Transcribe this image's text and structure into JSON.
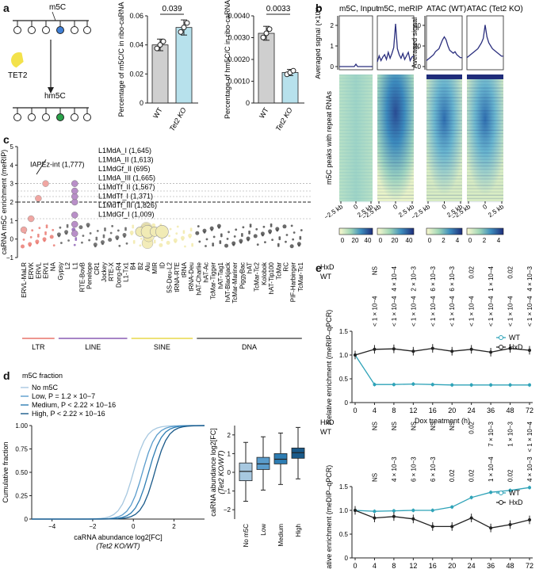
{
  "panels": {
    "a": "a",
    "b": "b",
    "c": "c",
    "d": "d",
    "e": "e"
  },
  "colors": {
    "wt_teal": "#2fa3b8",
    "hxd_black": "#222222",
    "tet2_light_blue": "#b7e1ec",
    "wt_grey": "#cfcfcf",
    "density_navy": "#2b2f7e"
  },
  "panel_a": {
    "schematic": {
      "m5c_label": "m5C",
      "hm5c_label": "hm5C",
      "enzyme_label": "TET2"
    },
    "bar1": {
      "ylabel": "Percentage of m5C/C in ribo-caRNA",
      "yticks": [
        "0",
        "0.02",
        "0.04",
        "0.06"
      ],
      "pvalue": "0.039",
      "categories": [
        "WT",
        "Tet2 KO"
      ]
    },
    "bar2": {
      "ylabel": "Percentage of hm5C/C in ribo-caRNA",
      "yticks": [
        "0",
        "0.0010",
        "0.0020",
        "0.0030",
        "0.0040"
      ],
      "pvalue": "0.0033",
      "categories": [
        "WT",
        "Tet2 KO"
      ]
    }
  },
  "panel_b": {
    "col_titles": [
      "m5C, Input",
      "m5C, meRIP",
      "ATAC (WT)",
      "ATAC (Tet2 KO)"
    ],
    "ylabel_left": "Averaged signal (×10³)",
    "ylabel_right": "Averaged signal",
    "yticks_left": [
      "0",
      "1",
      "2"
    ],
    "yticks_right": [
      "0",
      "20",
      "40"
    ],
    "heatmap_ylabel": "m5C peaks with repeat RNAs",
    "xticks": [
      "−2.5 kb",
      "0",
      "2.5 kb"
    ],
    "colorbar1_ticks": [
      "0",
      "20",
      "40"
    ],
    "colorbar2_ticks": [
      "0",
      "20",
      "40"
    ],
    "colorbar3_ticks": [
      "0",
      "2",
      "4"
    ],
    "colorbar4_ticks": [
      "0",
      "2",
      "4"
    ]
  },
  "panel_c": {
    "ylabel": "caRNA m5C enrichment (meRIP)",
    "yticks": [
      "−1",
      "0",
      "1",
      "2",
      "3",
      "4",
      "5"
    ],
    "annotation_iap": "IAPEz-int (1,777)",
    "l1_labels": [
      "L1MdA_I (1,645)",
      "L1MdA_II (1,613)",
      "L1MdGf_II (695)",
      "L1MdA_III (1,665)",
      "L1MdTf_II (1,567)",
      "L1MdTf_I (1,371)",
      "L1MdTf_III (1,826)",
      "L1MdGf_I (1,009)"
    ],
    "families": [
      "ERVL-MaLR",
      "ERVK",
      "ERVL",
      "ERV1",
      "NA",
      "Gypsy",
      "L2",
      "L1",
      "RTE-BovB",
      "Penelope",
      "CR1",
      "Jockey",
      "RTE-X",
      "Dong-R4",
      "L1-Tx1",
      "B4",
      "B2",
      "Alu",
      "MIR",
      "ID",
      "5S-Deu-L2",
      "tRNA-RTE",
      "tRNA",
      "tRNA-Deu",
      "hAT-Charlie",
      "hAT-Ac",
      "TcMar-Tigger",
      "hAT-Tag1",
      "hAT-Blackjack",
      "TcMar-Mariner",
      "PiggyBac",
      "hAT",
      "TcMar-Tc2",
      "Kolobok",
      "hAT-Tip100",
      "TcMar",
      "RC",
      "PIF-Harbinger",
      "TcMar-Tc1"
    ],
    "classes": [
      "LTR",
      "LINE",
      "SINE",
      "DNA"
    ],
    "class_colors": [
      "#e8746b",
      "#8a5bb3",
      "#e8d84a",
      "#555555"
    ]
  },
  "panel_d": {
    "legend_title": "m5C fraction",
    "legend": [
      "No m5C",
      "Low, P = 1.2 × 10−7",
      "Medium, P < 2.22 × 10−16",
      "High, P < 2.22 × 10−16"
    ],
    "cdf_ylabel": "Cumulative fraction",
    "cdf_xlabel1": "caRNA abundance log2[FC]",
    "cdf_xlabel2": "(Tet2 KO/WT)",
    "cdf_xticks": [
      "−4",
      "−2",
      "0",
      "2"
    ],
    "cdf_yticks": [
      "0",
      "0.25",
      "0.50",
      "0.75",
      "1.00"
    ],
    "box_ylabel1": "caRNA abundance log2[FC]",
    "box_ylabel2": "(Tet2 KO/WT)",
    "box_yticks": [
      "−2",
      "−1",
      "0",
      "1",
      "2"
    ],
    "box_categories": [
      "No m5C",
      "Low",
      "Medium",
      "High"
    ]
  },
  "chart_data": [
    {
      "type": "bar",
      "title": "m5C/C",
      "categories": [
        "WT",
        "Tet2 KO"
      ],
      "values": [
        0.04,
        0.052
      ],
      "ylim": [
        0,
        0.06
      ],
      "ylabel": "Percentage of m5C/C in ribo-caRNA"
    },
    {
      "type": "bar",
      "title": "hm5C/C",
      "categories": [
        "WT",
        "Tet2 KO"
      ],
      "values": [
        0.0032,
        0.0014
      ],
      "ylim": [
        0,
        0.004
      ],
      "ylabel": "Percentage of hm5C/C in ribo-caRNA"
    },
    {
      "type": "box",
      "categories": [
        "No m5C",
        "Low",
        "Medium",
        "High"
      ],
      "medians": [
        0.05,
        0.45,
        0.7,
        1.05
      ],
      "q1": [
        -0.45,
        0.15,
        0.45,
        0.75
      ],
      "q3": [
        0.5,
        0.8,
        1.0,
        1.3
      ],
      "ylim": [
        -2.5,
        2.5
      ]
    },
    {
      "type": "line",
      "title": "meRIP-qPCR",
      "xlabel": "Dox treatment (h)",
      "ylabel": "Relative enrichment (meRIP–qPCR)",
      "x": [
        "0",
        "4",
        "8",
        "12",
        "16",
        "20",
        "24",
        "36",
        "48",
        "72"
      ],
      "series": [
        {
          "name": "WT",
          "values": [
            1.0,
            0.38,
            0.38,
            0.39,
            0.38,
            0.37,
            0.37,
            0.37,
            0.37,
            0.37
          ]
        },
        {
          "name": "HxD",
          "values": [
            1.0,
            1.12,
            1.13,
            1.08,
            1.14,
            1.08,
            1.12,
            1.06,
            1.14,
            1.1
          ]
        }
      ],
      "ylim": [
        0,
        1.5
      ],
      "yticks": [
        "0",
        "0.5",
        "1.0",
        "1.5"
      ],
      "hxd_pvalues": [
        "NS",
        "4 × 10−4",
        "2 × 10−3",
        "6 × 10−3",
        "6 × 10−3",
        "0.02",
        "1 × 10−4",
        "0.02",
        "4 × 10−3"
      ],
      "wt_pvalues": [
        "< 1 × 10−4",
        "< 1 × 10−4",
        "< 1 × 10−4",
        "< 1 × 10−4",
        "< 1 × 10−4",
        "< 1 × 10−4",
        "< 1 × 10−4",
        "< 1 × 10−4",
        "< 1 × 10−4"
      ]
    },
    {
      "type": "line",
      "title": "meDIP-qPCR",
      "xlabel": "Dox treatment (h)",
      "ylabel": "Relative enrichment (meDIP–qPCR)",
      "x": [
        "0",
        "4",
        "8",
        "12",
        "16",
        "20",
        "24",
        "36",
        "48",
        "72"
      ],
      "series": [
        {
          "name": "WT",
          "values": [
            1.0,
            0.98,
            0.99,
            1.0,
            1.0,
            1.07,
            1.27,
            1.38,
            1.42,
            1.48
          ]
        },
        {
          "name": "HxD",
          "values": [
            1.0,
            0.84,
            0.87,
            0.82,
            0.66,
            0.66,
            0.84,
            0.63,
            0.7,
            0.8
          ]
        }
      ],
      "ylim": [
        0,
        1.5
      ],
      "yticks": [
        "0",
        "0.5",
        "1.0",
        "1.5"
      ],
      "hxd_pvalues": [
        "NS",
        "NS",
        "NS",
        "NS",
        "NS",
        "0.02",
        "7 × 10−3",
        "1 × 10−3",
        "< 1 × 10−4"
      ],
      "wt_pvalues": [
        "NS",
        "4 × 10−3",
        "6 × 10−3",
        "6 × 10−3",
        "0.02",
        "0.02",
        "1 × 10−4",
        "0.02",
        "4 × 10−3"
      ]
    }
  ],
  "panel_e": {
    "legend": [
      "WT",
      "HxD"
    ],
    "row_labels": [
      "HxD",
      "WT"
    ],
    "xlabel": "Dox treatment (h)",
    "ylabel_top": "Relative enrichment (meRIP–qPCR)",
    "ylabel_bottom": "Relative enrichment (meDIP–qPCR)"
  }
}
